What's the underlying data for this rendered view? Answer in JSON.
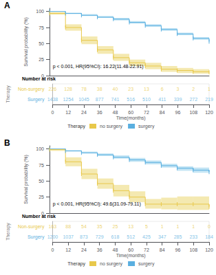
{
  "chart_data": [
    {
      "type": "line",
      "title": "A",
      "annotation": "p < 0.001, HR(95%CI): 16.22(11.48-22.91)",
      "ylabel": "Survival probability (%)",
      "xlabel": "Time(months)",
      "xlim": [
        0,
        120
      ],
      "ylim": [
        0,
        105
      ],
      "yticks": [
        0,
        25,
        50,
        75,
        100
      ],
      "xticks": [
        0,
        12,
        24,
        36,
        48,
        60,
        72,
        84,
        96,
        108,
        120
      ],
      "grid": false,
      "legend_title": "Therapy",
      "legend_order": [
        "no surgery",
        "surgery"
      ],
      "series": [
        {
          "name": "surgery",
          "color": "#5AAFE0",
          "ci_color": "#A8D8F0",
          "marker": "|",
          "line_style": "steps-post",
          "x": [
            0,
            12,
            24,
            36,
            48,
            60,
            72,
            84,
            96,
            108,
            120
          ],
          "values": [
            100,
            97,
            94,
            91,
            88,
            83,
            78,
            72,
            65,
            58,
            53
          ],
          "lower": [
            100,
            96,
            93,
            90,
            86,
            81,
            76,
            70,
            63,
            56,
            51
          ],
          "upper": [
            100,
            98,
            96,
            93,
            90,
            85,
            80,
            74,
            67,
            60,
            55
          ]
        },
        {
          "name": "no surgery",
          "color": "#E8C84A",
          "ci_color": "#F0E090",
          "marker": "|",
          "line_style": "steps-post",
          "x": [
            0,
            12,
            24,
            36,
            48,
            60,
            72,
            84,
            96,
            108,
            120
          ],
          "values": [
            97,
            75,
            55,
            40,
            28,
            20,
            15,
            10,
            8,
            6,
            5
          ],
          "lower": [
            95,
            70,
            49,
            34,
            23,
            15,
            10,
            6,
            4,
            3,
            2
          ],
          "upper": [
            99,
            80,
            61,
            46,
            34,
            25,
            20,
            15,
            12,
            10,
            9
          ]
        }
      ],
      "risk_table": {
        "title": "Number at risk",
        "ylabel": "Therapy",
        "x": [
          0,
          12,
          24,
          36,
          48,
          60,
          72,
          84,
          96,
          108,
          120
        ],
        "rows": [
          {
            "name": "Non-surgery",
            "color": "#E8C84A",
            "values": [
              226,
              128,
              78,
              38,
              40,
              23,
              13,
              6,
              3,
              2,
              1
            ]
          },
          {
            "name": "Surgery",
            "color": "#5AAFE0",
            "values": [
              1438,
              1254,
              1045,
              877,
              741,
              516,
              510,
              411,
              339,
              272,
              219
            ]
          }
        ]
      }
    },
    {
      "type": "line",
      "title": "B",
      "annotation": "p < 0.001, HR(95%CI): 49.6(31.09-79.11)",
      "ylabel": "Survival probability (%)",
      "xlabel": "Time(months)",
      "xlim": [
        0,
        120
      ],
      "ylim": [
        0,
        105
      ],
      "yticks": [
        0,
        25,
        50,
        75,
        100
      ],
      "xticks": [
        0,
        12,
        24,
        36,
        48,
        60,
        72,
        84,
        96,
        108,
        120
      ],
      "grid": false,
      "legend_title": "Therapy",
      "legend_order": [
        "no surgery",
        "surgery"
      ],
      "series": [
        {
          "name": "surgery",
          "color": "#5AAFE0",
          "ci_color": "#A8D8F0",
          "marker": "|",
          "line_style": "steps-post",
          "x": [
            0,
            12,
            24,
            36,
            48,
            60,
            72,
            84,
            96,
            108,
            120
          ],
          "values": [
            100,
            97,
            94,
            91,
            87,
            83,
            79,
            74,
            70,
            67,
            64
          ],
          "lower": [
            100,
            96,
            93,
            89,
            85,
            80,
            76,
            71,
            66,
            63,
            60
          ],
          "upper": [
            100,
            98,
            96,
            93,
            90,
            86,
            82,
            77,
            73,
            71,
            68
          ]
        },
        {
          "name": "no surgery",
          "color": "#E8C84A",
          "ci_color": "#F0E090",
          "marker": "|",
          "line_style": "steps-post",
          "x": [
            0,
            12,
            24,
            36,
            48,
            60,
            72,
            84,
            96,
            108,
            120
          ],
          "values": [
            99,
            80,
            61,
            46,
            35,
            25,
            14,
            14,
            14,
            14,
            10
          ],
          "lower": [
            97,
            73,
            53,
            38,
            26,
            17,
            7,
            6,
            5,
            5,
            0
          ],
          "upper": [
            100,
            87,
            69,
            54,
            44,
            34,
            22,
            24,
            26,
            26,
            25
          ]
        }
      ],
      "risk_table": {
        "title": "Number at risk",
        "ylabel": "Therapy",
        "x": [
          0,
          12,
          24,
          36,
          48,
          60,
          72,
          84,
          96,
          108,
          120
        ],
        "rows": [
          {
            "name": "Non-surgery",
            "color": "#E8C84A",
            "values": [
              163,
              88,
              54,
              35,
              25,
              13,
              5,
              1,
              1,
              1,
              0
            ]
          },
          {
            "name": "Surgery",
            "color": "#5AAFE0",
            "values": [
              1200,
              1037,
              873,
              729,
              618,
              512,
              425,
              347,
              285,
              233,
              184
            ]
          }
        ]
      }
    }
  ]
}
